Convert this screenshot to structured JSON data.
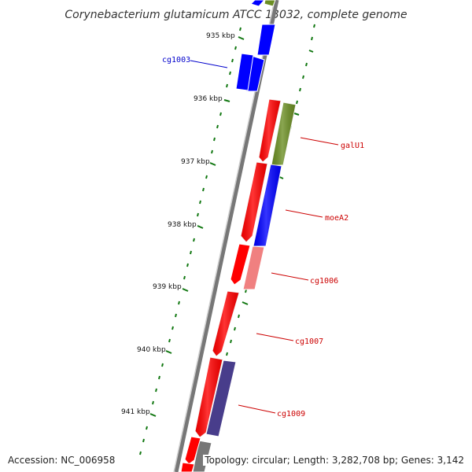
{
  "title": "Corynebacterium glutamicum ATCC 13032, complete genome",
  "scale_labels": [
    "935 kbp",
    "936 kbp",
    "937 kbp",
    "938 kbp",
    "939 kbp",
    "940 kbp",
    "941 kbp"
  ],
  "gene_labels": [
    {
      "name": "cg1003",
      "color": "#0000cc"
    },
    {
      "name": "galU1",
      "color": "#cc0000"
    },
    {
      "name": "moeA2",
      "color": "#cc0000"
    },
    {
      "name": "cg1006",
      "color": "#cc0000"
    },
    {
      "name": "cg1007",
      "color": "#cc0000"
    },
    {
      "name": "cg1009",
      "color": "#cc0000"
    }
  ],
  "colors": {
    "forward_cds": "#ff0000",
    "reverse_cds": "#0000ff",
    "green_feature": "#6b8e23",
    "pink_feature": "#f08080",
    "purple_feature": "#483d8b",
    "backbone": "#888888",
    "tick_marks": "#117711"
  },
  "footer": {
    "accession": "Accession: NC_006958",
    "topology": "Topology: circular; Length: 3,282,708 bp; Genes: 3,142"
  }
}
